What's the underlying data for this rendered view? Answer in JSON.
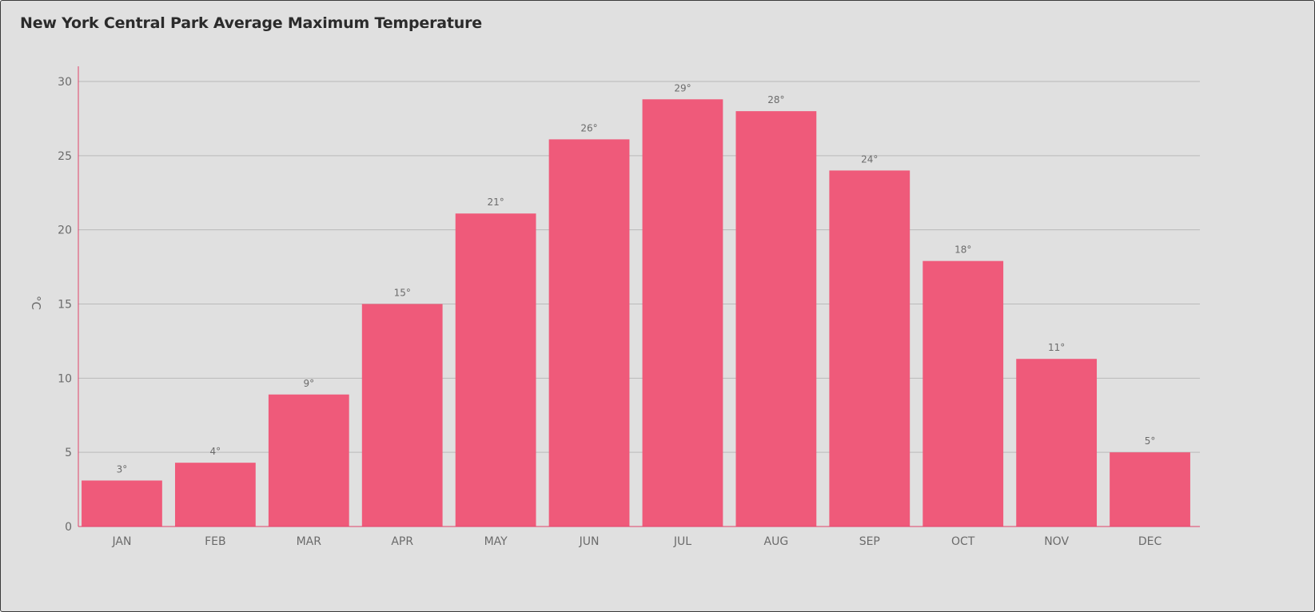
{
  "chart_data": {
    "type": "bar",
    "title": "New York Central Park Average Maximum Temperature",
    "ylabel": "°C",
    "xlabel": "",
    "categories": [
      "JAN",
      "FEB",
      "MAR",
      "APR",
      "MAY",
      "JUN",
      "JUL",
      "AUG",
      "SEP",
      "OCT",
      "NOV",
      "DEC"
    ],
    "values": [
      3.1,
      4.3,
      8.9,
      15.0,
      21.1,
      26.1,
      28.8,
      28.0,
      24.0,
      17.9,
      11.3,
      5.0
    ],
    "data_labels": [
      "3°",
      "4°",
      "9°",
      "15°",
      "21°",
      "26°",
      "29°",
      "28°",
      "24°",
      "18°",
      "11°",
      "5°"
    ],
    "ylim": [
      0,
      30
    ],
    "yticks": [
      0,
      5,
      10,
      15,
      20,
      25,
      30
    ],
    "grid": true,
    "legend": "none",
    "colors": {
      "bar": "#ef5a7a",
      "axis": "#e0436a",
      "grid": "#b9b9b9",
      "background": "#e0e0e0"
    }
  }
}
